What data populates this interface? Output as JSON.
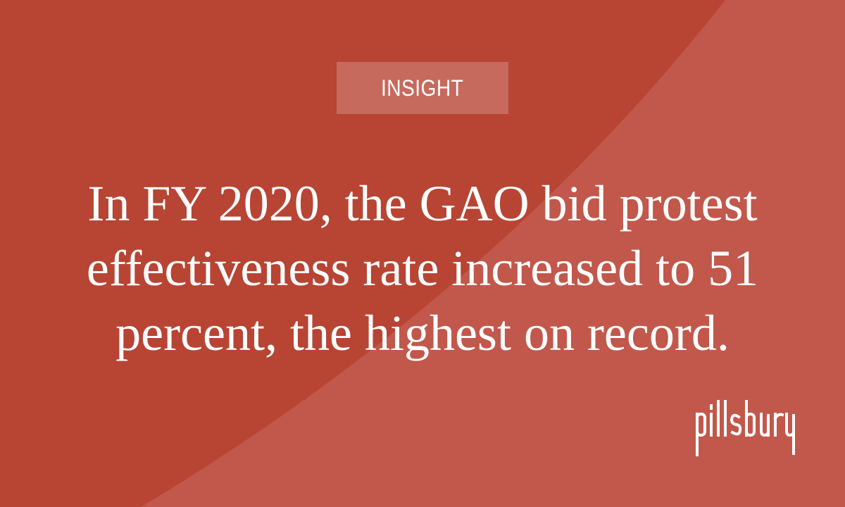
{
  "colors": {
    "background": "#b84434",
    "background_sweep": "#c25c50",
    "badge_fill": "#c76a5e",
    "text": "#ffffff"
  },
  "badge": {
    "label": "INSIGHT"
  },
  "quote": {
    "text": "In FY 2020, the GAO bid protest effectiveness rate increased to 51 percent, the highest on record."
  },
  "logo": {
    "wordmark": "pillsbury"
  }
}
